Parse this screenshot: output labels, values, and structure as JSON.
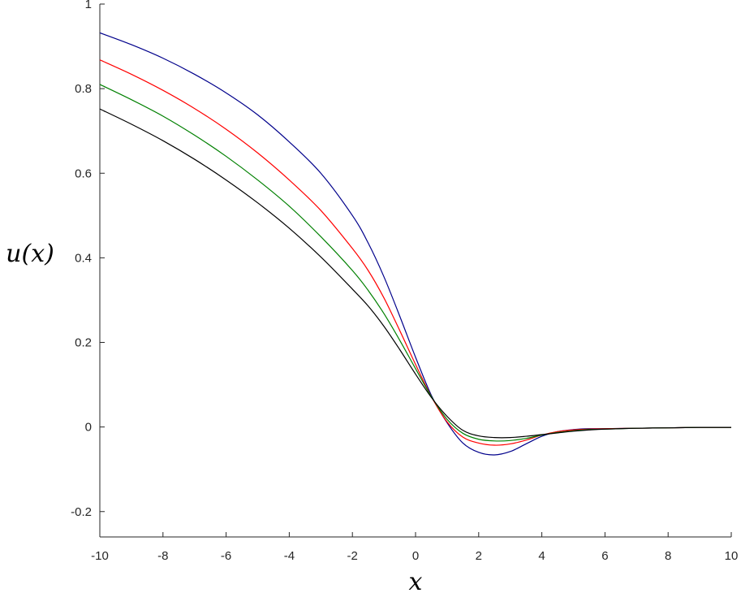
{
  "chart_data": {
    "type": "line",
    "title": "",
    "xlabel": "x",
    "ylabel": "u(x)",
    "xlim": [
      -10,
      10
    ],
    "ylim": [
      -0.26,
      1.0
    ],
    "xticks": [
      -10,
      -8,
      -6,
      -4,
      -2,
      0,
      2,
      4,
      6,
      8,
      10
    ],
    "yticks": [
      -0.2,
      0,
      0.2,
      0.4,
      0.6,
      0.8,
      1
    ],
    "xtick_labels": [
      "-10",
      "-8",
      "-6",
      "-4",
      "-2",
      "0",
      "2",
      "4",
      "6",
      "8",
      "10"
    ],
    "ytick_labels": [
      "-0.2",
      "0",
      "0.2",
      "0.4",
      "0.6",
      "0.8",
      "1"
    ],
    "grid": false,
    "legend": null,
    "series": [
      {
        "color": "#00008b",
        "x": [
          -10,
          -9,
          -8,
          -7,
          -6,
          -5,
          -4,
          -3,
          -2,
          -1.5,
          -1,
          -0.5,
          0,
          0.5,
          1,
          1.5,
          2,
          2.5,
          3,
          3.5,
          4,
          4.5,
          5,
          5.5,
          6,
          7,
          8,
          9,
          10
        ],
        "y": [
          0.932,
          0.904,
          0.872,
          0.834,
          0.79,
          0.738,
          0.674,
          0.6,
          0.5,
          0.435,
          0.355,
          0.262,
          0.165,
          0.075,
          0.01,
          -0.038,
          -0.06,
          -0.066,
          -0.058,
          -0.04,
          -0.022,
          -0.011,
          -0.006,
          -0.004,
          -0.004,
          -0.003,
          -0.002,
          -0.001,
          -0.001
        ]
      },
      {
        "color": "#ff0000",
        "x": [
          -10,
          -9,
          -8,
          -7,
          -6,
          -5,
          -4,
          -3,
          -2,
          -1.5,
          -1,
          -0.5,
          0,
          0.5,
          1,
          1.5,
          2,
          2.5,
          3,
          3.5,
          4,
          4.5,
          5,
          5.5,
          6,
          7,
          8,
          9,
          10
        ],
        "y": [
          0.868,
          0.834,
          0.796,
          0.753,
          0.704,
          0.648,
          0.584,
          0.512,
          0.422,
          0.37,
          0.305,
          0.228,
          0.148,
          0.072,
          0.012,
          -0.024,
          -0.038,
          -0.043,
          -0.04,
          -0.031,
          -0.019,
          -0.011,
          -0.007,
          -0.005,
          -0.004,
          -0.003,
          -0.002,
          -0.001,
          -0.001
        ]
      },
      {
        "color": "#008000",
        "x": [
          -10,
          -9,
          -8,
          -7,
          -6,
          -5,
          -4,
          -3,
          -2,
          -1.5,
          -1,
          -0.5,
          0,
          0.5,
          1,
          1.5,
          2,
          2.5,
          3,
          3.5,
          4,
          4.5,
          5,
          5.5,
          6,
          7,
          8,
          9,
          10
        ],
        "y": [
          0.81,
          0.774,
          0.735,
          0.69,
          0.64,
          0.584,
          0.522,
          0.45,
          0.37,
          0.323,
          0.268,
          0.205,
          0.138,
          0.072,
          0.018,
          -0.015,
          -0.029,
          -0.033,
          -0.032,
          -0.027,
          -0.019,
          -0.013,
          -0.009,
          -0.006,
          -0.005,
          -0.003,
          -0.002,
          -0.001,
          -0.001
        ]
      },
      {
        "color": "#000000",
        "x": [
          -10,
          -9,
          -8,
          -7,
          -6,
          -5,
          -4,
          -3,
          -2,
          -1.5,
          -1,
          -0.5,
          0,
          0.5,
          1,
          1.5,
          2,
          2.5,
          3,
          3.5,
          4,
          4.5,
          5,
          5.5,
          6,
          7,
          8,
          9,
          10
        ],
        "y": [
          0.752,
          0.716,
          0.677,
          0.633,
          0.584,
          0.53,
          0.47,
          0.402,
          0.326,
          0.286,
          0.238,
          0.183,
          0.125,
          0.07,
          0.025,
          -0.008,
          -0.021,
          -0.025,
          -0.025,
          -0.022,
          -0.018,
          -0.014,
          -0.01,
          -0.007,
          -0.005,
          -0.003,
          -0.002,
          -0.001,
          -0.001
        ]
      }
    ]
  }
}
